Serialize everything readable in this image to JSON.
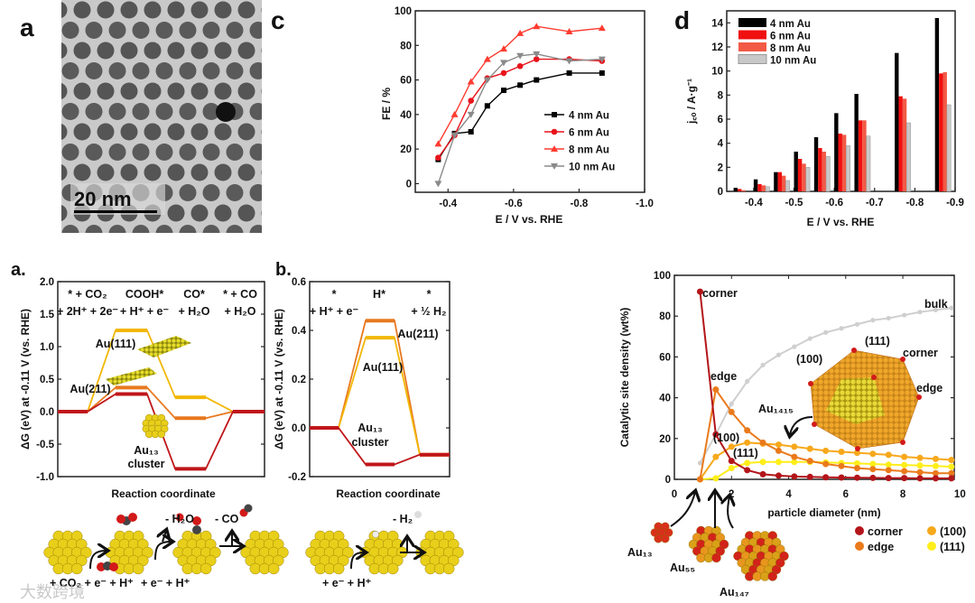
{
  "panel_labels": {
    "tem": "a",
    "fe": "c",
    "jco": "d",
    "energy_co2": "a.",
    "energy_her": "b."
  },
  "tem": {
    "scale_bar": "20 nm"
  },
  "colors": {
    "au111": "#f2b705",
    "au211": "#e8781e",
    "au13": "#c0161a",
    "corner": "#b3151a",
    "edge": "#ea7a1c",
    "f100": "#f7a81b",
    "f111": "#ffee1a",
    "bulk": "#cfcfcf",
    "gold": "#e6c619"
  },
  "chart_data": [
    {
      "id": "fe",
      "type": "line",
      "title": "",
      "xlabel": "E / V vs. RHE",
      "ylabel": "FE / %",
      "xlim": [
        -0.3,
        -1.0
      ],
      "ylim": [
        -5,
        100
      ],
      "xticks": [
        -0.4,
        -0.6,
        -0.8,
        -1.0
      ],
      "xtick_labels": [
        "-0.4",
        "-0.6",
        "-0.8",
        "-1.0"
      ],
      "yticks": [
        0,
        20,
        40,
        60,
        80,
        100
      ],
      "ytick_labels": [
        "0",
        "20",
        "40",
        "60",
        "80",
        "100"
      ],
      "legend_position": "center-right",
      "x": [
        -0.37,
        -0.42,
        -0.47,
        -0.52,
        -0.57,
        -0.62,
        -0.67,
        -0.77,
        -0.87
      ],
      "series": [
        {
          "name": "4 nm Au",
          "color": "#000000",
          "marker": "square",
          "values": [
            14,
            29,
            30,
            45,
            54,
            57,
            60,
            64,
            64
          ]
        },
        {
          "name": "6 nm Au",
          "color": "#e8141c",
          "marker": "circle",
          "values": [
            15,
            28,
            48,
            61,
            64,
            68,
            72,
            72,
            71
          ]
        },
        {
          "name": "8 nm Au",
          "color": "#ff3b30",
          "marker": "triangle-up",
          "values": [
            23,
            40,
            59,
            72,
            78,
            87,
            91,
            88,
            90
          ]
        },
        {
          "name": "10 nm Au",
          "color": "#8a8a8a",
          "marker": "triangle-down",
          "values": [
            0,
            28,
            40,
            60,
            70,
            74,
            75,
            71,
            72
          ]
        }
      ]
    },
    {
      "id": "jco",
      "type": "bar",
      "title": "",
      "xlabel": "E / V vs. RHE",
      "ylabel": "j꜀ₒ / A·g⁻¹",
      "xlim": [
        -0.333,
        -0.9
      ],
      "ylim": [
        0,
        15
      ],
      "xticks": [
        -0.4,
        -0.5,
        -0.6,
        -0.7,
        -0.8,
        -0.9
      ],
      "xtick_labels": [
        "-0.4",
        "-0.5",
        "-0.6",
        "-0.7",
        "-0.8",
        "-0.9"
      ],
      "yticks": [
        0,
        2,
        4,
        6,
        8,
        10,
        12,
        14
      ],
      "ytick_labels": [
        "0",
        "2",
        "4",
        "6",
        "8",
        "10",
        "12",
        "14"
      ],
      "legend_position": "top-left",
      "categories": [
        -0.35,
        -0.4,
        -0.45,
        -0.5,
        -0.55,
        -0.6,
        -0.65,
        -0.75,
        -0.85
      ],
      "series": [
        {
          "name": "4 nm Au",
          "color": "#000000",
          "values": [
            0.3,
            1.0,
            1.6,
            3.3,
            4.5,
            6.5,
            8.1,
            11.5,
            14.4
          ]
        },
        {
          "name": "6 nm Au",
          "color": "#f01010",
          "values": [
            0.2,
            0.6,
            1.6,
            2.7,
            3.6,
            4.8,
            5.9,
            7.9,
            9.8
          ]
        },
        {
          "name": "8 nm Au",
          "color": "#f25a45",
          "values": [
            0.1,
            0.5,
            1.3,
            2.3,
            3.3,
            4.7,
            5.9,
            7.7,
            9.9
          ]
        },
        {
          "name": "10 nm Au",
          "color": "#c8c8c8",
          "values": [
            0.0,
            0.4,
            0.9,
            2.0,
            2.9,
            3.8,
            4.6,
            5.7,
            7.2
          ]
        }
      ]
    },
    {
      "id": "energy_co2",
      "type": "line",
      "title": "",
      "xlabel": "Reaction coordinate",
      "ylabel": "ΔG (eV) at -0.11 V (vs. RHE)",
      "ylim": [
        -1.0,
        2.0
      ],
      "yticks": [
        -1.0,
        -0.5,
        0.0,
        0.5,
        1.0,
        1.5,
        2.0
      ],
      "ytick_labels": [
        "-1.0",
        "-0.5",
        "0.0",
        "0.5",
        "1.0",
        "1.5",
        "2.0"
      ],
      "states": [
        {
          "line1": "* + CO₂",
          "line2": "+ 2H⁺ + 2e⁻"
        },
        {
          "line1": "COOH*",
          "line2": "+ H⁺ + e⁻"
        },
        {
          "line1": "CO*",
          "line2": "+ H₂O"
        },
        {
          "line1": "* + CO",
          "line2": "+ H₂O"
        }
      ],
      "series": [
        {
          "name": "Au(111)",
          "color": "#f2b705",
          "values": [
            0,
            1.25,
            0.22,
            0
          ]
        },
        {
          "name": "Au(211)",
          "color": "#e8781e",
          "values": [
            0,
            0.37,
            -0.1,
            0
          ]
        },
        {
          "name": "Au₁₃ cluster",
          "color": "#c0161a",
          "values": [
            0,
            0.27,
            -0.88,
            0
          ]
        }
      ],
      "annotations": {
        "au111": "Au(111)",
        "au211": "Au(211)",
        "au13": "Au₁₃",
        "cluster": "cluster"
      }
    },
    {
      "id": "energy_her",
      "type": "line",
      "title": "",
      "xlabel": "Reaction coordinate",
      "ylabel": "ΔG (eV) at -0.11 V (vs. RHE)",
      "ylim": [
        -0.2,
        0.6
      ],
      "yticks": [
        -0.2,
        0.0,
        0.2,
        0.4,
        0.6
      ],
      "ytick_labels": [
        "-0.2",
        "0.0",
        "0.2",
        "0.4",
        "0.6"
      ],
      "states": [
        {
          "line1": "*",
          "line2": "+ H⁺ + e⁻"
        },
        {
          "line1": "H*",
          "line2": ""
        },
        {
          "line1": "*",
          "line2": "+ ½ H₂"
        }
      ],
      "series": [
        {
          "name": "Au(211)",
          "color": "#e8781e",
          "values": [
            0,
            0.44,
            -0.11
          ]
        },
        {
          "name": "Au(111)",
          "color": "#f2b705",
          "values": [
            0,
            0.37,
            -0.11
          ]
        },
        {
          "name": "Au₁₃ cluster",
          "color": "#c0161a",
          "values": [
            0,
            -0.15,
            -0.11
          ]
        }
      ],
      "annotations": {
        "au211": "Au(211)",
        "au111": "Au(111)",
        "au13": "Au₁₃",
        "cluster": "cluster"
      }
    },
    {
      "id": "site_density",
      "type": "line",
      "title": "",
      "xlabel": "particle diameter (nm)",
      "ylabel": "Catalytic site density (wt%)",
      "xlim": [
        0,
        9.8
      ],
      "ylim": [
        0,
        100
      ],
      "xticks": [
        0,
        2,
        4,
        6,
        8,
        10
      ],
      "xtick_labels": [
        "0",
        "2",
        "4",
        "6",
        "8",
        "10"
      ],
      "yticks": [
        0,
        20,
        40,
        60,
        80,
        100
      ],
      "ytick_labels": [
        "0",
        "20",
        "40",
        "60",
        "80",
        "100"
      ],
      "legend_position": "bottom-right",
      "x": [
        0.9,
        1.45,
        2.0,
        2.55,
        3.1,
        3.65,
        4.2,
        4.75,
        5.3,
        5.85,
        6.4,
        6.95,
        7.5,
        8.05,
        8.6,
        9.15,
        9.7
      ],
      "series": [
        {
          "name": "bulk",
          "color": "#cfcfcf",
          "in_legend": false,
          "values": [
            8,
            22,
            37,
            48,
            56,
            61,
            65,
            69,
            72,
            74,
            76,
            78,
            79,
            80.5,
            82,
            83,
            84
          ]
        },
        {
          "name": "(100)",
          "color": "#f7a81b",
          "in_legend": true,
          "values": [
            0,
            11,
            16,
            18,
            17.5,
            17,
            16,
            15,
            14,
            13.5,
            13,
            12.5,
            12,
            11,
            10.5,
            10,
            9.5
          ]
        },
        {
          "name": "(111)",
          "color": "#ffee1a",
          "in_legend": true,
          "values": [
            0,
            0.5,
            5.5,
            8,
            8.5,
            8.5,
            8.5,
            8.5,
            8.3,
            8,
            7.8,
            7.5,
            7.2,
            7,
            6.8,
            6.5,
            6.2
          ]
        },
        {
          "name": "edge",
          "color": "#ea7a1c",
          "in_legend": true,
          "values": [
            0,
            44,
            33,
            24,
            18,
            14,
            11,
            9,
            7.5,
            6.5,
            5.5,
            5,
            4.5,
            4,
            3.5,
            3,
            3
          ]
        },
        {
          "name": "corner",
          "color": "#b3151a",
          "in_legend": true,
          "values": [
            92,
            22,
            9,
            4.5,
            2.5,
            1.8,
            1.4,
            1.2,
            1,
            0.9,
            0.8,
            0.7,
            0.6,
            0.6,
            0.5,
            0.5,
            0.5
          ]
        }
      ],
      "annotations": {
        "corner": "corner",
        "bulk": "bulk",
        "edge": "edge",
        "f100": "(100)",
        "f111": "(111)",
        "au1415": "Au₁₄₁₅",
        "ico_111": "(111)",
        "ico_corner": "corner",
        "ico_100": "(100)",
        "ico_edge": "edge",
        "au13": "Au₁₃",
        "au55": "Au₅₅",
        "au147": "Au₁₄₇"
      }
    }
  ],
  "scheme": {
    "co2_minus_h2o": "- H₂O",
    "co2_minus_co": "- CO",
    "co2_step1": "+ CO₂ + e⁻ + H⁺",
    "co2_step2": "+ e⁻ + H⁺",
    "her_minus_h2": "- H₂",
    "her_step1": "+ e⁻ + H⁺"
  },
  "watermark": "大数跨境"
}
